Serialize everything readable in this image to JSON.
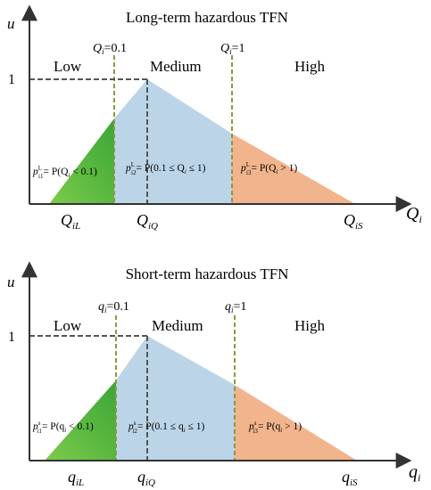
{
  "panels": [
    {
      "id": "long",
      "title": "Long-term hazardous TFN",
      "y_axis_label": "u",
      "x_axis_label": {
        "base": "Q",
        "sub": "i"
      },
      "y_tick": "1",
      "threshold_1": {
        "base": "Q",
        "sub": "i",
        "rest": "=0.1"
      },
      "threshold_2": {
        "base": "Q",
        "sub": "i",
        "rest": "=1"
      },
      "regions": [
        "Low",
        "Medium",
        "High"
      ],
      "points": [
        {
          "base": "Q",
          "sub": "iL"
        },
        {
          "base": "Q",
          "sub": "iQ"
        },
        {
          "base": "Q",
          "sub": "iS"
        }
      ],
      "formulas": [
        {
          "p": "p",
          "sup": "L",
          "sub": "i1",
          "eq": "= P(Q",
          "qsub": "i",
          "tail": " < 0.1)"
        },
        {
          "p": "p",
          "sup": "L",
          "sub": "i2",
          "eq": "= P(0.1 ≤ Q",
          "qsub": "i",
          "tail": " ≤ 1)"
        },
        {
          "p": "p",
          "sup": "L",
          "sub": "i3",
          "eq": "= P(Q",
          "qsub": "i",
          "tail": " > 1)"
        }
      ]
    },
    {
      "id": "short",
      "title": "Short-term hazardous TFN",
      "y_axis_label": "u",
      "x_axis_label": {
        "base": "q",
        "sub": "i"
      },
      "y_tick": "1",
      "threshold_1": {
        "base": "q",
        "sub": "i",
        "rest": "=0.1"
      },
      "threshold_2": {
        "base": "q",
        "sub": "i",
        "rest": "=1"
      },
      "regions": [
        "Low",
        "Medium",
        "High"
      ],
      "points": [
        {
          "base": "q",
          "sub": "iL"
        },
        {
          "base": "q",
          "sub": "iQ"
        },
        {
          "base": "q",
          "sub": "iS"
        }
      ],
      "formulas": [
        {
          "p": "p",
          "sup": "s",
          "sub": "i1",
          "eq": "= P(q",
          "qsub": "i",
          "tail": " < 0.1)"
        },
        {
          "p": "p",
          "sup": "s",
          "sub": "i2",
          "eq": "= P(0.1 ≤ q",
          "qsub": "i",
          "tail": " ≤ 1)"
        },
        {
          "p": "p",
          "sup": "s",
          "sub": "i3",
          "eq": "= P(q",
          "qsub": "i",
          "tail": " > 1)"
        }
      ]
    }
  ],
  "colors": {
    "low": "#6cc04a",
    "low_dark": "#3fa935",
    "medium": "#b4cfe6",
    "high": "#f2b48c",
    "threshold": "#8c9a3c",
    "dashed": "#555555",
    "axis": "#333333"
  }
}
